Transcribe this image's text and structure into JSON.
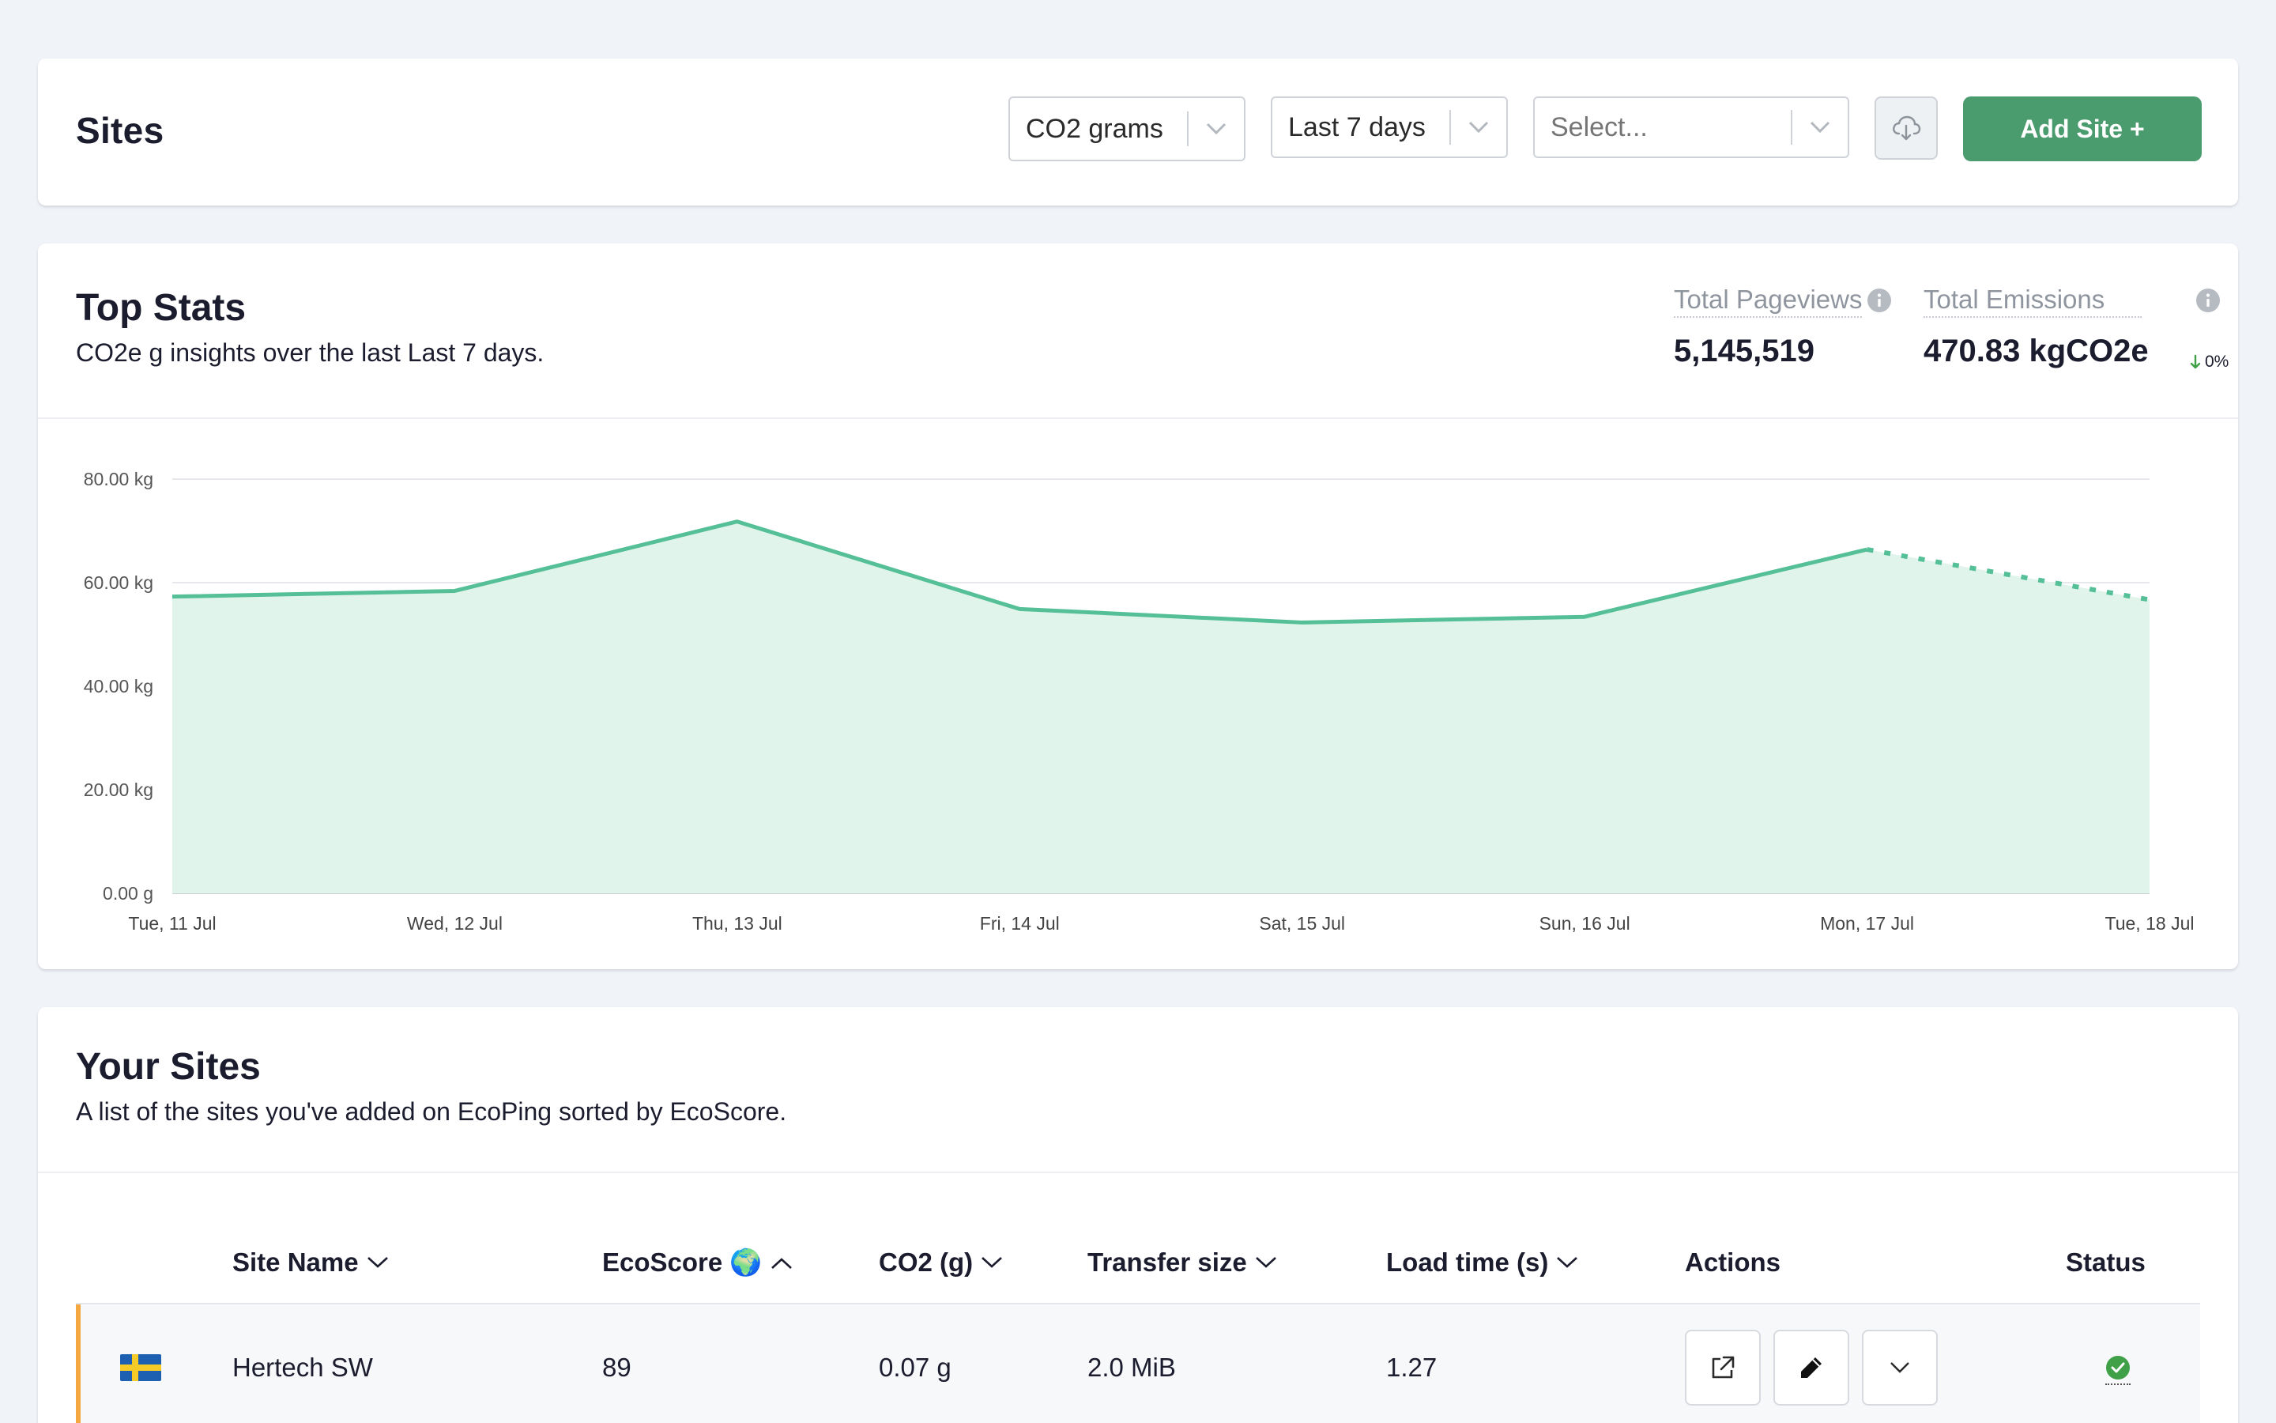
{
  "header": {
    "title": "Sites",
    "metric_select": "CO2 grams",
    "range_select": "Last 7 days",
    "site_select_placeholder": "Select...",
    "add_site_label": "Add Site +"
  },
  "top_stats": {
    "title": "Top Stats",
    "subtitle": "CO2e g insights over the last Last 7 days.",
    "pageviews_label": "Total Pageviews",
    "pageviews_value": "5,145,519",
    "emissions_label": "Total Emissions",
    "emissions_value": "470.83 kgCO2e",
    "emissions_change": "0%"
  },
  "chart_data": {
    "type": "area",
    "x": [
      "Tue, 11 Jul",
      "Wed, 12 Jul",
      "Thu, 13 Jul",
      "Fri, 14 Jul",
      "Sat, 15 Jul",
      "Sun, 16 Jul",
      "Mon, 17 Jul",
      "Tue, 18 Jul"
    ],
    "series": [
      {
        "values": [
          57.3,
          58.4,
          71.8,
          54.9,
          52.3,
          53.4,
          66.4,
          56.7
        ]
      }
    ],
    "projected_from_index": 6,
    "y_ticks": [
      "0.00 g",
      "20.00 kg",
      "40.00 kg",
      "60.00 kg",
      "80.00 kg"
    ],
    "ylim": [
      0,
      80
    ],
    "grid": true,
    "colors": {
      "line": "#55bf98",
      "fill": "#e0f4ec"
    }
  },
  "your_sites": {
    "title": "Your Sites",
    "subtitle": "A list of the sites you've added on EcoPing sorted by EcoScore.",
    "columns": {
      "site_name": "Site Name",
      "ecoscore": "EcoScore 🌍",
      "co2": "CO2 (g)",
      "transfer": "Transfer size",
      "load_time": "Load time (s)",
      "actions": "Actions",
      "status": "Status"
    },
    "rows": [
      {
        "flag": "sweden-flag-icon",
        "site_name": "Hertech SW",
        "ecoscore": "89",
        "co2": "0.07 g",
        "transfer": "2.0 MiB",
        "load_time": "1.27",
        "status": "ok"
      }
    ]
  },
  "colors": {
    "accent": "#4a9b6e",
    "row_marker": "#f5a742",
    "status_ok": "#3fa048"
  }
}
